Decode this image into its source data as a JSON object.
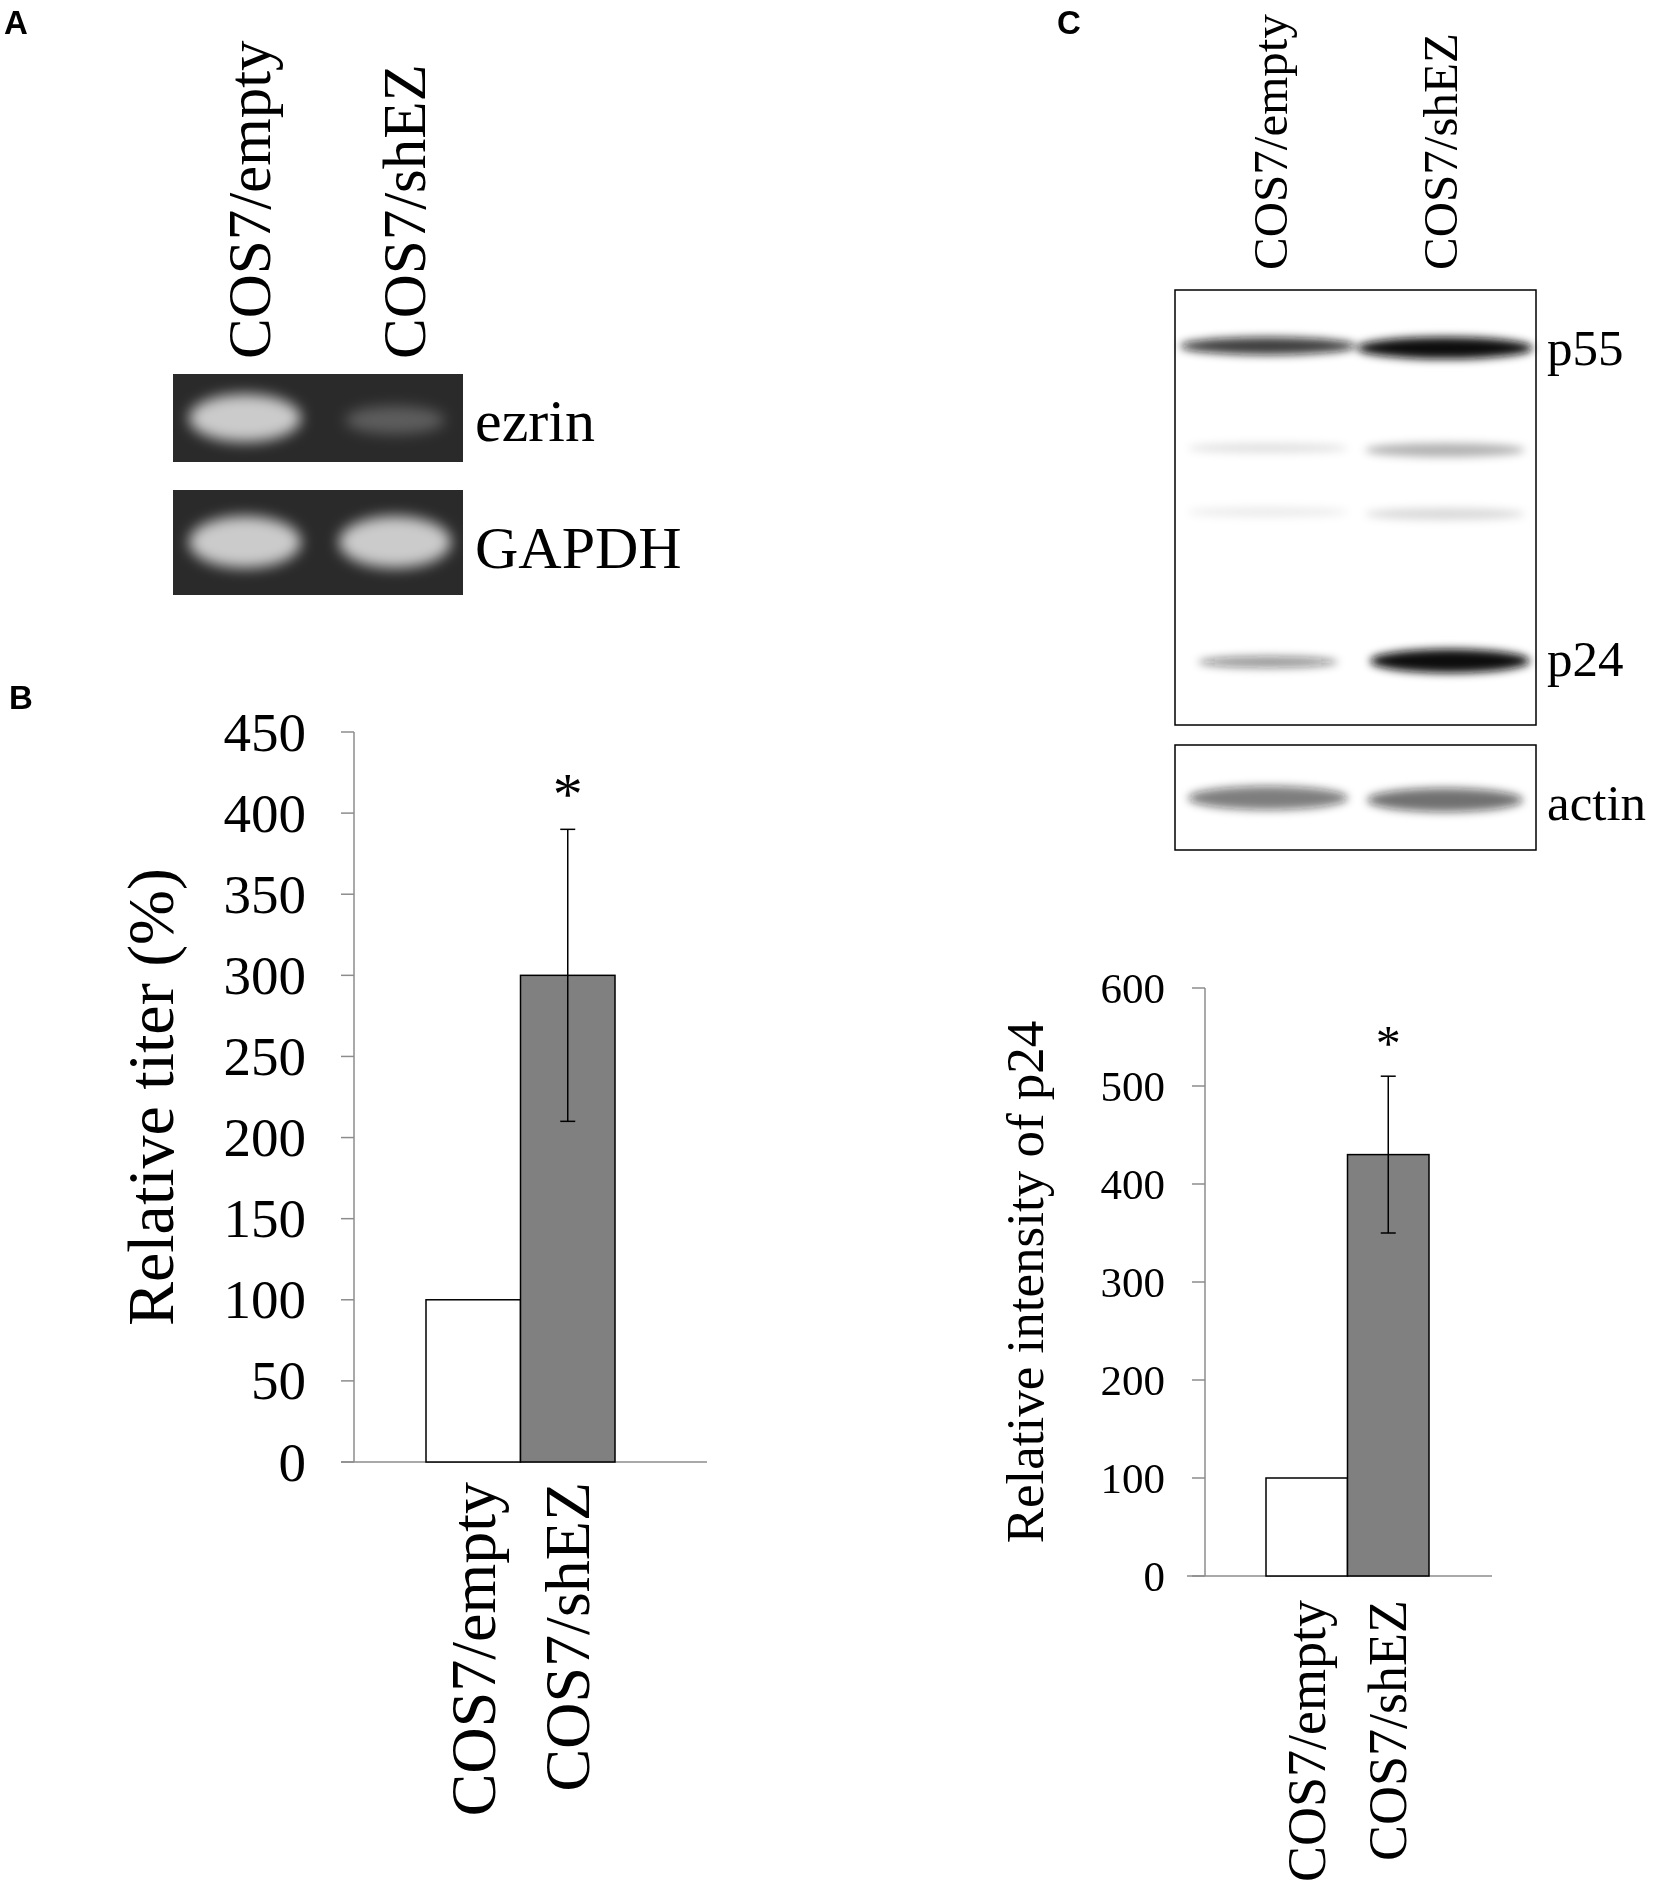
{
  "chart_data": [
    {
      "type": "other",
      "title": "A",
      "categories": [
        "COS7/empty",
        "COS7/shEZ"
      ],
      "annotations": [
        "ezrin",
        "GAPDH"
      ]
    },
    {
      "type": "bar",
      "title": "B",
      "categories": [
        "COS7/empty",
        "COS7/shEZ"
      ],
      "values": [
        100,
        300
      ],
      "errors": [
        null,
        90
      ],
      "colors": [
        "#ffffff",
        "#808080"
      ],
      "ylabel": "Relative titer (%)",
      "ylim": [
        0,
        450
      ],
      "yticks": [
        0,
        50,
        100,
        150,
        200,
        250,
        300,
        350,
        400,
        450
      ],
      "annotations": [
        "*"
      ]
    },
    {
      "type": "other",
      "title": "C",
      "categories": [
        "COS7/empty",
        "COS7/shEZ"
      ],
      "annotations": [
        "p55",
        "p24",
        "actin"
      ]
    },
    {
      "type": "bar",
      "categories": [
        "COS7/empty",
        "COS7/shEZ"
      ],
      "values": [
        100,
        430
      ],
      "errors": [
        null,
        80
      ],
      "colors": [
        "#ffffff",
        "#808080"
      ],
      "ylabel": "Relative intensity of p24",
      "ylim": [
        0,
        600
      ],
      "yticks": [
        0,
        100,
        200,
        300,
        400,
        500,
        600
      ],
      "annotations": [
        "*"
      ]
    }
  ]
}
